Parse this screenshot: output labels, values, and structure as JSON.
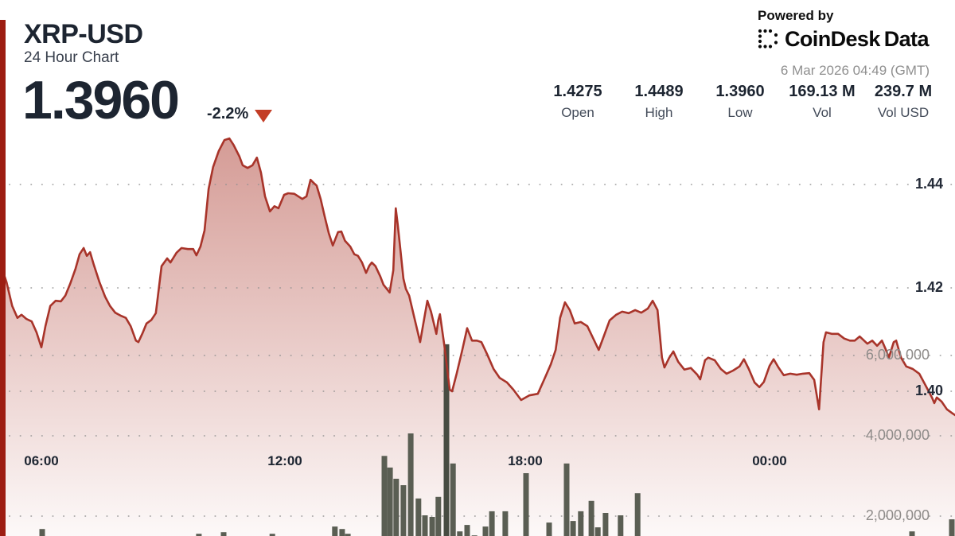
{
  "header": {
    "symbol": "XRP-USD",
    "subtitle": "24 Hour Chart",
    "price": "1.3960",
    "change": "-2.2%",
    "powered_by": "Powered by",
    "brand": "CoinDesk",
    "brand_suffix": "Data",
    "timestamp": "6 Mar 2026 04:49 (GMT)"
  },
  "stats": [
    {
      "value": "1.4275",
      "label": "Open"
    },
    {
      "value": "1.4489",
      "label": "High"
    },
    {
      "value": "1.3960",
      "label": "Low"
    },
    {
      "value": "169.13 M",
      "label": "Vol"
    },
    {
      "value": "239.7 M",
      "label": "Vol USD"
    }
  ],
  "colors": {
    "line": "#a8342a",
    "fill_top": "rgba(169,52,40,0.50)",
    "fill_bottom": "rgba(169,52,40,0.03)",
    "volume_bar": "#5a5e53",
    "volume_bar_tall": "#474c42",
    "accent_strip": "#9d1d12",
    "price_text": "#1d2531",
    "timestamp_text": "#8f8f8f",
    "tick_price_text": "#242b38",
    "tick_volume_text": "#8e8b89",
    "grid_dot": "#8f8f8f",
    "change_triangle": "#c33d26"
  },
  "chart_data": {
    "type": "line",
    "title": "XRP-USD 24 Hour Chart",
    "x_unit": "hours since chart start (~05:00 GMT, spans 24h to 04:49 GMT)",
    "grid": "dotted horizontal lines only",
    "legend": "none",
    "x_ticks": [
      {
        "h": 1.02,
        "label": "06:00"
      },
      {
        "h": 7.02,
        "label": "12:00"
      },
      {
        "h": 12.94,
        "label": "18:00"
      },
      {
        "h": 18.96,
        "label": "00:00"
      }
    ],
    "price_ticks": [
      {
        "value": 1.44,
        "label": "1.44"
      },
      {
        "value": 1.42,
        "label": "1.42"
      },
      {
        "value": 1.4,
        "label": "1.40"
      }
    ],
    "volume_ticks": [
      {
        "value": 6000000,
        "label": "6,000,000"
      },
      {
        "value": 4000000,
        "label": "4,000,000"
      },
      {
        "value": 2000000,
        "label": "2,000,000"
      }
    ],
    "price_series": {
      "name": "XRP-USD price",
      "points": [
        [
          0,
          1.4249
        ],
        [
          0.16,
          1.4211
        ],
        [
          0.3,
          1.4165
        ],
        [
          0.43,
          1.4142
        ],
        [
          0.53,
          1.4148
        ],
        [
          0.65,
          1.414
        ],
        [
          0.78,
          1.4135
        ],
        [
          0.9,
          1.4114
        ],
        [
          1.02,
          1.4085
        ],
        [
          1.12,
          1.4126
        ],
        [
          1.24,
          1.4165
        ],
        [
          1.37,
          1.4175
        ],
        [
          1.5,
          1.4174
        ],
        [
          1.61,
          1.4185
        ],
        [
          1.73,
          1.4208
        ],
        [
          1.86,
          1.4237
        ],
        [
          1.96,
          1.4265
        ],
        [
          2.06,
          1.4277
        ],
        [
          2.14,
          1.4262
        ],
        [
          2.22,
          1.4269
        ],
        [
          2.31,
          1.4245
        ],
        [
          2.45,
          1.4211
        ],
        [
          2.59,
          1.4183
        ],
        [
          2.71,
          1.4165
        ],
        [
          2.84,
          1.4152
        ],
        [
          2.98,
          1.4146
        ],
        [
          3.1,
          1.4142
        ],
        [
          3.22,
          1.4126
        ],
        [
          3.35,
          1.4098
        ],
        [
          3.41,
          1.4095
        ],
        [
          3.51,
          1.4112
        ],
        [
          3.61,
          1.4131
        ],
        [
          3.73,
          1.4138
        ],
        [
          3.84,
          1.4151
        ],
        [
          3.98,
          1.4242
        ],
        [
          4.12,
          1.4257
        ],
        [
          4.2,
          1.4249
        ],
        [
          4.35,
          1.4268
        ],
        [
          4.47,
          1.4277
        ],
        [
          4.63,
          1.4275
        ],
        [
          4.76,
          1.4275
        ],
        [
          4.84,
          1.4263
        ],
        [
          4.94,
          1.428
        ],
        [
          5.04,
          1.4311
        ],
        [
          5.14,
          1.4391
        ],
        [
          5.25,
          1.4434
        ],
        [
          5.39,
          1.4465
        ],
        [
          5.53,
          1.4486
        ],
        [
          5.65,
          1.4489
        ],
        [
          5.75,
          1.4477
        ],
        [
          5.9,
          1.4454
        ],
        [
          5.98,
          1.4437
        ],
        [
          6.1,
          1.4432
        ],
        [
          6.22,
          1.4437
        ],
        [
          6.33,
          1.4452
        ],
        [
          6.43,
          1.4423
        ],
        [
          6.53,
          1.4377
        ],
        [
          6.65,
          1.4348
        ],
        [
          6.76,
          1.4358
        ],
        [
          6.86,
          1.4354
        ],
        [
          7,
          1.438
        ],
        [
          7.1,
          1.4383
        ],
        [
          7.25,
          1.4382
        ],
        [
          7.45,
          1.4372
        ],
        [
          7.55,
          1.4377
        ],
        [
          7.65,
          1.4409
        ],
        [
          7.73,
          1.4403
        ],
        [
          7.8,
          1.4398
        ],
        [
          7.9,
          1.4372
        ],
        [
          8,
          1.4338
        ],
        [
          8.1,
          1.4306
        ],
        [
          8.2,
          1.4282
        ],
        [
          8.33,
          1.4308
        ],
        [
          8.41,
          1.4309
        ],
        [
          8.5,
          1.4291
        ],
        [
          8.63,
          1.428
        ],
        [
          8.73,
          1.4265
        ],
        [
          8.82,
          1.4262
        ],
        [
          8.92,
          1.4249
        ],
        [
          9.02,
          1.4229
        ],
        [
          9.1,
          1.4243
        ],
        [
          9.16,
          1.4249
        ],
        [
          9.25,
          1.4242
        ],
        [
          9.37,
          1.4222
        ],
        [
          9.45,
          1.4206
        ],
        [
          9.6,
          1.4191
        ],
        [
          9.69,
          1.4234
        ],
        [
          9.75,
          1.4354
        ],
        [
          9.8,
          1.4322
        ],
        [
          9.86,
          1.4277
        ],
        [
          9.94,
          1.4218
        ],
        [
          10,
          1.4198
        ],
        [
          10.08,
          1.4185
        ],
        [
          10.2,
          1.4145
        ],
        [
          10.35,
          1.4095
        ],
        [
          10.47,
          1.4149
        ],
        [
          10.53,
          1.4175
        ],
        [
          10.62,
          1.4154
        ],
        [
          10.75,
          1.4111
        ],
        [
          10.8,
          1.4138
        ],
        [
          10.84,
          1.4149
        ],
        [
          10.95,
          1.4088
        ],
        [
          11.08,
          1.4003
        ],
        [
          11.14,
          1.4
        ],
        [
          11.25,
          1.4034
        ],
        [
          11.39,
          1.408
        ],
        [
          11.51,
          1.4122
        ],
        [
          11.63,
          1.4098
        ],
        [
          11.75,
          1.4098
        ],
        [
          11.86,
          1.4095
        ],
        [
          12,
          1.4072
        ],
        [
          12.16,
          1.4043
        ],
        [
          12.31,
          1.4026
        ],
        [
          12.49,
          1.4017
        ],
        [
          12.65,
          1.4003
        ],
        [
          12.84,
          1.3983
        ],
        [
          13.04,
          1.3992
        ],
        [
          13.25,
          1.3995
        ],
        [
          13.41,
          1.4023
        ],
        [
          13.57,
          1.4052
        ],
        [
          13.69,
          1.408
        ],
        [
          13.8,
          1.4142
        ],
        [
          13.92,
          1.4172
        ],
        [
          14.04,
          1.4157
        ],
        [
          14.16,
          1.4131
        ],
        [
          14.31,
          1.4134
        ],
        [
          14.47,
          1.4126
        ],
        [
          14.63,
          1.41
        ],
        [
          14.75,
          1.408
        ],
        [
          14.86,
          1.4103
        ],
        [
          15.02,
          1.4137
        ],
        [
          15.18,
          1.4148
        ],
        [
          15.33,
          1.4154
        ],
        [
          15.49,
          1.4151
        ],
        [
          15.65,
          1.4157
        ],
        [
          15.8,
          1.4152
        ],
        [
          15.96,
          1.416
        ],
        [
          16.08,
          1.4175
        ],
        [
          16.2,
          1.4157
        ],
        [
          16.31,
          1.4065
        ],
        [
          16.37,
          1.4046
        ],
        [
          16.49,
          1.4065
        ],
        [
          16.59,
          1.4077
        ],
        [
          16.71,
          1.4057
        ],
        [
          16.86,
          1.4042
        ],
        [
          17.02,
          1.4045
        ],
        [
          17.18,
          1.4032
        ],
        [
          17.25,
          1.4023
        ],
        [
          17.37,
          1.406
        ],
        [
          17.45,
          1.4065
        ],
        [
          17.61,
          1.406
        ],
        [
          17.76,
          1.4043
        ],
        [
          17.9,
          1.4034
        ],
        [
          18.06,
          1.404
        ],
        [
          18.22,
          1.4048
        ],
        [
          18.33,
          1.4062
        ],
        [
          18.45,
          1.4043
        ],
        [
          18.59,
          1.4017
        ],
        [
          18.71,
          1.4008
        ],
        [
          18.82,
          1.4018
        ],
        [
          18.96,
          1.4049
        ],
        [
          19.06,
          1.4062
        ],
        [
          19.18,
          1.4046
        ],
        [
          19.31,
          1.4031
        ],
        [
          19.47,
          1.4034
        ],
        [
          19.63,
          1.4032
        ],
        [
          19.78,
          1.4034
        ],
        [
          19.94,
          1.4035
        ],
        [
          20.06,
          1.4022
        ],
        [
          20.18,
          1.3965
        ],
        [
          20.29,
          1.4095
        ],
        [
          20.35,
          1.4114
        ],
        [
          20.49,
          1.4111
        ],
        [
          20.65,
          1.4111
        ],
        [
          20.8,
          1.4102
        ],
        [
          20.94,
          1.4098
        ],
        [
          21.06,
          1.4098
        ],
        [
          21.18,
          1.4106
        ],
        [
          21.37,
          1.4092
        ],
        [
          21.49,
          1.4098
        ],
        [
          21.61,
          1.4088
        ],
        [
          21.73,
          1.4098
        ],
        [
          21.84,
          1.4078
        ],
        [
          21.9,
          1.4065
        ],
        [
          22.02,
          1.4095
        ],
        [
          22.08,
          1.4098
        ],
        [
          22.2,
          1.4065
        ],
        [
          22.33,
          1.4048
        ],
        [
          22.49,
          1.4043
        ],
        [
          22.65,
          1.4034
        ],
        [
          22.8,
          1.4012
        ],
        [
          22.96,
          1.3988
        ],
        [
          23.02,
          1.3977
        ],
        [
          23.08,
          1.3988
        ],
        [
          23.2,
          1.398
        ],
        [
          23.33,
          1.3965
        ],
        [
          23.47,
          1.3957
        ],
        [
          23.53,
          1.3954
        ]
      ]
    },
    "volume_series": {
      "name": "Volume",
      "unit": "millions of XRP",
      "points": [
        [
          1.04,
          1.68
        ],
        [
          4.9,
          1.56
        ],
        [
          5.51,
          1.6
        ],
        [
          6.71,
          1.56
        ],
        [
          8.25,
          1.74
        ],
        [
          8.43,
          1.68
        ],
        [
          8.57,
          1.56
        ],
        [
          9.47,
          3.5
        ],
        [
          9.61,
          3.21
        ],
        [
          9.76,
          2.93
        ],
        [
          9.94,
          2.77
        ],
        [
          10.12,
          4.06
        ],
        [
          10.31,
          2.44
        ],
        [
          10.47,
          2.02
        ],
        [
          10.65,
          1.98
        ],
        [
          10.8,
          2.48
        ],
        [
          11,
          6.28
        ],
        [
          11.16,
          3.31
        ],
        [
          11.33,
          1.62
        ],
        [
          11.51,
          1.78
        ],
        [
          11.69,
          1.52
        ],
        [
          11.96,
          1.74
        ],
        [
          12.12,
          2.12
        ],
        [
          12.45,
          2.12
        ],
        [
          12.96,
          3.07
        ],
        [
          13.53,
          1.84
        ],
        [
          13.96,
          3.31
        ],
        [
          14.12,
          1.88
        ],
        [
          14.31,
          2.12
        ],
        [
          14.57,
          2.38
        ],
        [
          14.73,
          1.72
        ],
        [
          14.92,
          2.08
        ],
        [
          15.29,
          2.02
        ],
        [
          15.71,
          2.57
        ],
        [
          22.47,
          1.62
        ],
        [
          23.45,
          1.92
        ]
      ]
    },
    "summary": {
      "open": 1.4275,
      "high": 1.4489,
      "low": 1.396,
      "last": 1.396,
      "change_pct": -2.2,
      "volume": "169.13 M",
      "volume_usd": "239.7 M"
    }
  }
}
